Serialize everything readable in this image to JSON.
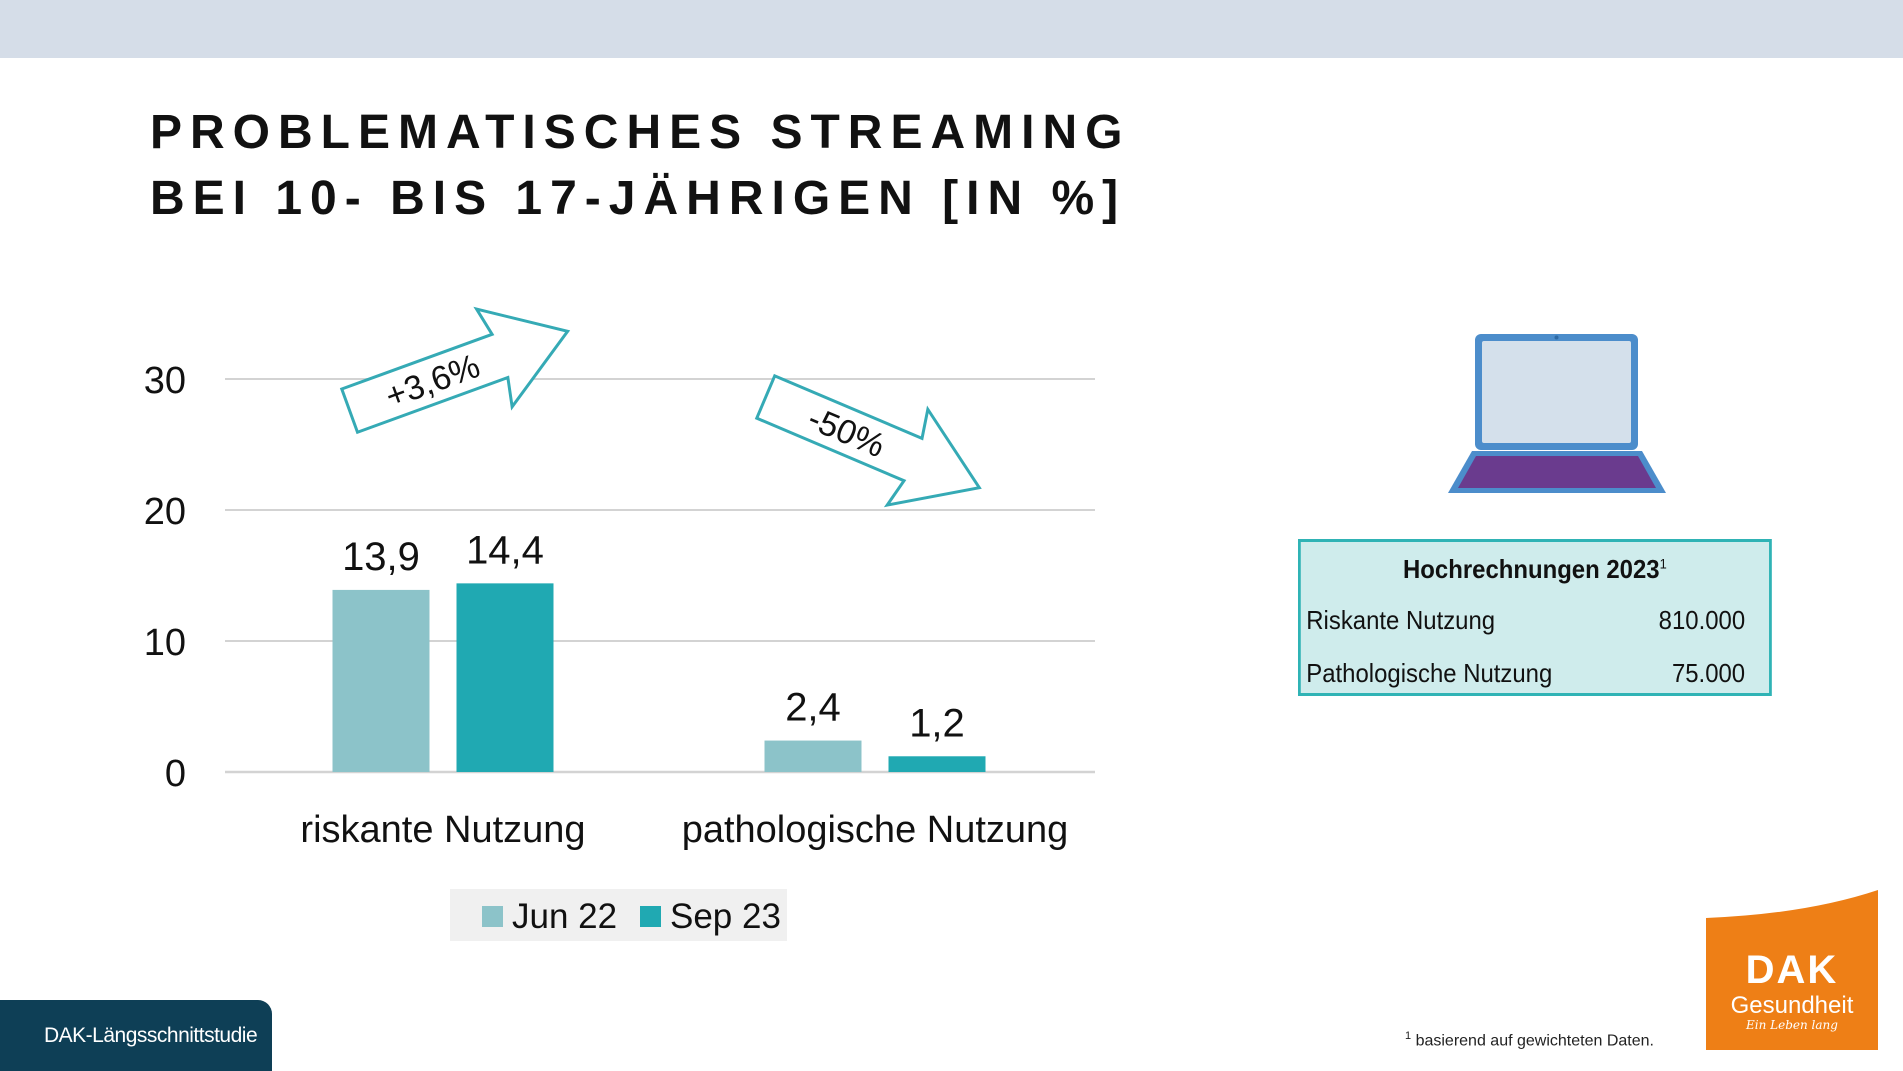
{
  "title_lines": [
    "PROBLEMATISCHES STREAMING",
    "BEI 10- BIS 17-JÄHRIGEN [IN %]"
  ],
  "chart_data": {
    "type": "bar",
    "title": "PROBLEMATISCHES STREAMING BEI 10- BIS 17-JÄHRIGEN [IN %]",
    "categories": [
      "riskante Nutzung",
      "pathologische Nutzung"
    ],
    "series": [
      {
        "name": "Jun 22",
        "values": [
          13.9,
          2.4
        ],
        "labels": [
          "13,9",
          "2,4"
        ],
        "color": "#8cc3c9"
      },
      {
        "name": "Sep 23",
        "values": [
          14.4,
          1.2
        ],
        "labels": [
          "14,4",
          "1,2"
        ],
        "color": "#20a9b2"
      }
    ],
    "ylim": [
      0,
      30
    ],
    "yticks": [
      0,
      10,
      20,
      30
    ],
    "grid": true,
    "legend_position": "bottom",
    "annotations": [
      {
        "text": "+3,6%",
        "category": "riskante Nutzung",
        "direction": "up"
      },
      {
        "text": "-50%",
        "category": "pathologische Nutzung",
        "direction": "down"
      }
    ],
    "axis_color": "#d3d3d3",
    "arrow_color": "#35aab5"
  },
  "info_box": {
    "heading": "Hochrechnungen 2023",
    "heading_sup": "1",
    "rows": [
      {
        "label": "Riskante Nutzung",
        "value": "810.000"
      },
      {
        "label": "Pathologische Nutzung",
        "value": "75.000"
      }
    ]
  },
  "footnote": {
    "sup": "1",
    "text": "basierend auf gewichteten Daten."
  },
  "study_label": "DAK-Längsschnittstudie",
  "logo": {
    "brand": "DAK",
    "sub": "Gesundheit",
    "tagline": "Ein Leben lang",
    "color": "#ee7f16"
  },
  "icons": {
    "device": "laptop-icon"
  },
  "colors": {
    "topbar": "#d5dde8",
    "info_box_bg": "#cfecec",
    "info_box_border": "#2fb3b5",
    "study_tag": "#0e3f56"
  }
}
